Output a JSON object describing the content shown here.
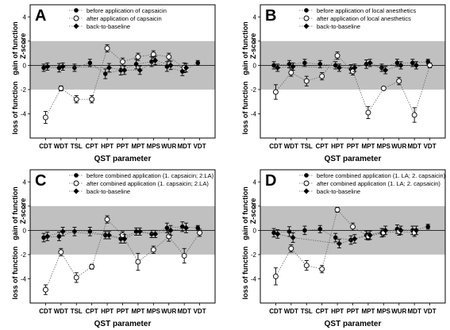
{
  "chart_data": [
    {
      "type": "scatter",
      "panel_label": "A",
      "categories": [
        "CDT",
        "WDT",
        "TSL",
        "CPT",
        "HPT",
        "PPT",
        "MPT",
        "MPS",
        "WUR",
        "MDT",
        "VDT"
      ],
      "xlabel": "QST parameter",
      "ylabel_main": "Z-score",
      "ylabel_gain": "gain of function",
      "ylabel_loss": "loss of function",
      "ylim": [
        -6,
        5
      ],
      "yticks": [
        -4,
        -2,
        0,
        2,
        4
      ],
      "normal_band": [
        -2,
        2
      ],
      "legend_position": "top-right",
      "series": [
        {
          "name": "before application of capsaicin",
          "marker": "filled-circle",
          "x_offset": -0.12,
          "values": [
            -0.2,
            -0.2,
            -0.2,
            0.2,
            -0.7,
            -0.4,
            0.1,
            0.3,
            -0.1,
            -0.5,
            0.2
          ],
          "errors": [
            0.3,
            0.35,
            0.3,
            0.3,
            0.4,
            0.4,
            0.4,
            0.4,
            0.4,
            0.35,
            0.2
          ]
        },
        {
          "name": "after application of capsaicin",
          "marker": "open-circle",
          "x_offset": 0.0,
          "values": [
            -4.3,
            -1.9,
            -2.8,
            -2.8,
            1.4,
            0.3,
            0.7,
            0.9,
            0.7,
            -0.2,
            null
          ],
          "errors": [
            0.5,
            0.2,
            0.3,
            0.3,
            0.3,
            0.3,
            0.3,
            0.3,
            0.3,
            0.4,
            0
          ]
        },
        {
          "name": "back-to-baseline",
          "marker": "filled-diamond",
          "x_offset": 0.12,
          "values": [
            -0.1,
            -0.1,
            null,
            null,
            -0.2,
            -0.4,
            -0.4,
            0.4,
            0.0,
            -0.2,
            null
          ],
          "errors": [
            0.3,
            0.3,
            0,
            0,
            0.35,
            0.35,
            0.35,
            0.35,
            0.35,
            0.35,
            0
          ]
        }
      ]
    },
    {
      "type": "scatter",
      "panel_label": "B",
      "categories": [
        "CDT",
        "WDT",
        "TSL",
        "CPT",
        "HPT",
        "PPT",
        "MPT",
        "MPS",
        "WUR",
        "MDT",
        "VDT"
      ],
      "xlabel": "QST parameter",
      "ylabel_main": "Z-score",
      "ylabel_gain": "gain of function",
      "ylabel_loss": "loss of function",
      "ylim": [
        -6,
        5
      ],
      "yticks": [
        -4,
        -2,
        0,
        2,
        4
      ],
      "normal_band": [
        -2,
        2
      ],
      "legend_position": "top-right",
      "series": [
        {
          "name": "before application of local anesthetics",
          "marker": "filled-circle",
          "x_offset": -0.12,
          "values": [
            0.0,
            0.1,
            0.2,
            0.1,
            0.0,
            -0.3,
            0.1,
            -0.2,
            0.2,
            0.2,
            0.3
          ],
          "errors": [
            0.3,
            0.3,
            0.3,
            0.3,
            0.3,
            0.35,
            0.35,
            0.3,
            0.3,
            0.3,
            0.2
          ]
        },
        {
          "name": "after application of local anesthetics",
          "marker": "open-circle",
          "x_offset": 0.0,
          "values": [
            -2.2,
            -0.6,
            -1.3,
            -0.9,
            0.8,
            -0.5,
            -3.9,
            -1.9,
            -1.3,
            -4.1,
            0.0
          ],
          "errors": [
            0.6,
            0.3,
            0.4,
            0.3,
            0.3,
            0.3,
            0.5,
            0.1,
            0.3,
            0.6,
            0.2
          ]
        },
        {
          "name": "back-to-baseline",
          "marker": "filled-diamond",
          "x_offset": 0.12,
          "values": [
            -0.2,
            -0.1,
            null,
            null,
            -0.2,
            -0.2,
            0.2,
            -0.4,
            0.0,
            0.0,
            null
          ],
          "errors": [
            0.3,
            0.3,
            0,
            0,
            0.3,
            0.3,
            0.3,
            0.3,
            0.3,
            0.3,
            0
          ]
        }
      ]
    },
    {
      "type": "scatter",
      "panel_label": "C",
      "categories": [
        "CDT",
        "WDT",
        "TSL",
        "CPT",
        "HPT",
        "PPT",
        "MPT",
        "MPS",
        "WUR",
        "MDT",
        "VDT"
      ],
      "xlabel": "QST parameter",
      "ylabel_main": "Z-score",
      "ylabel_gain": "gain of function",
      "ylabel_loss": "loss of function",
      "ylim": [
        -6,
        5
      ],
      "yticks": [
        -4,
        -2,
        0,
        2,
        4
      ],
      "normal_band": [
        -2,
        2
      ],
      "legend_position": "top-right",
      "series": [
        {
          "name": "before combined application (1. capsaicin; 2.LA)",
          "marker": "filled-circle",
          "x_offset": -0.12,
          "values": [
            -0.6,
            -0.5,
            -0.1,
            -0.1,
            -0.4,
            -0.7,
            -0.1,
            -0.3,
            0.2,
            0.3,
            0.2
          ],
          "errors": [
            0.35,
            0.35,
            0.35,
            0.35,
            0.3,
            0.35,
            0.3,
            0.3,
            0.4,
            0.4,
            0.2
          ]
        },
        {
          "name": "after combined application (1. capsaicin; 2.LA)",
          "marker": "open-circle",
          "x_offset": 0.0,
          "values": [
            -4.9,
            -1.8,
            -3.9,
            -3.0,
            0.9,
            -0.4,
            -2.6,
            -1.6,
            -0.5,
            -2.1,
            -0.2
          ],
          "errors": [
            0.4,
            0.3,
            0.4,
            0.2,
            0.3,
            0.3,
            0.7,
            0.3,
            0.4,
            0.6,
            0.3
          ]
        },
        {
          "name": "back-to-baseline",
          "marker": "filled-diamond",
          "x_offset": 0.12,
          "values": [
            -0.5,
            -0.1,
            null,
            null,
            -0.4,
            -0.7,
            -0.1,
            -0.3,
            0.0,
            0.2,
            null
          ],
          "errors": [
            0.35,
            0.35,
            0,
            0,
            0.3,
            0.35,
            0.3,
            0.3,
            0.4,
            0.4,
            0
          ]
        }
      ]
    },
    {
      "type": "scatter",
      "panel_label": "D",
      "categories": [
        "CDT",
        "WDT",
        "TSL",
        "CPT",
        "HPT",
        "PPT",
        "MPT",
        "MPS",
        "WUR",
        "MDT",
        "VDT"
      ],
      "xlabel": "QST parameter",
      "ylabel_main": "Z-score",
      "ylabel_gain": "gain of function",
      "ylabel_loss": "loss of function",
      "ylim": [
        -6,
        5
      ],
      "yticks": [
        -4,
        -2,
        0,
        2,
        4
      ],
      "normal_band": [
        -2,
        2
      ],
      "legend_position": "top-right",
      "series": [
        {
          "name": "before combined application (1. LA; 2. capsaicin)",
          "marker": "filled-circle",
          "x_offset": -0.12,
          "values": [
            -0.2,
            -0.1,
            0.0,
            0.1,
            -0.6,
            -0.8,
            -0.4,
            -0.2,
            0.1,
            0.0,
            0.3
          ],
          "errors": [
            0.35,
            0.4,
            0.35,
            0.3,
            0.35,
            0.35,
            0.35,
            0.35,
            0.35,
            0.35,
            0.2
          ]
        },
        {
          "name": "after combined application (1. LA; 2. capsaicin)",
          "marker": "open-circle",
          "x_offset": 0.0,
          "values": [
            -3.8,
            -1.5,
            -2.9,
            -3.2,
            1.7,
            0.3,
            -0.5,
            -0.2,
            -0.1,
            -0.2,
            null
          ],
          "errors": [
            0.7,
            0.3,
            0.4,
            0.3,
            0.2,
            0.3,
            0.3,
            0.3,
            0.3,
            0.3,
            0
          ]
        },
        {
          "name": "back-to-baseline",
          "marker": "filled-diamond",
          "x_offset": 0.12,
          "values": [
            -0.3,
            -0.6,
            null,
            null,
            -1.1,
            -0.7,
            -0.4,
            0.0,
            0.0,
            0.0,
            null
          ],
          "errors": [
            0.35,
            0.4,
            0,
            0,
            0.35,
            0.35,
            0.35,
            0.35,
            0.35,
            0.35,
            0
          ]
        }
      ]
    }
  ]
}
